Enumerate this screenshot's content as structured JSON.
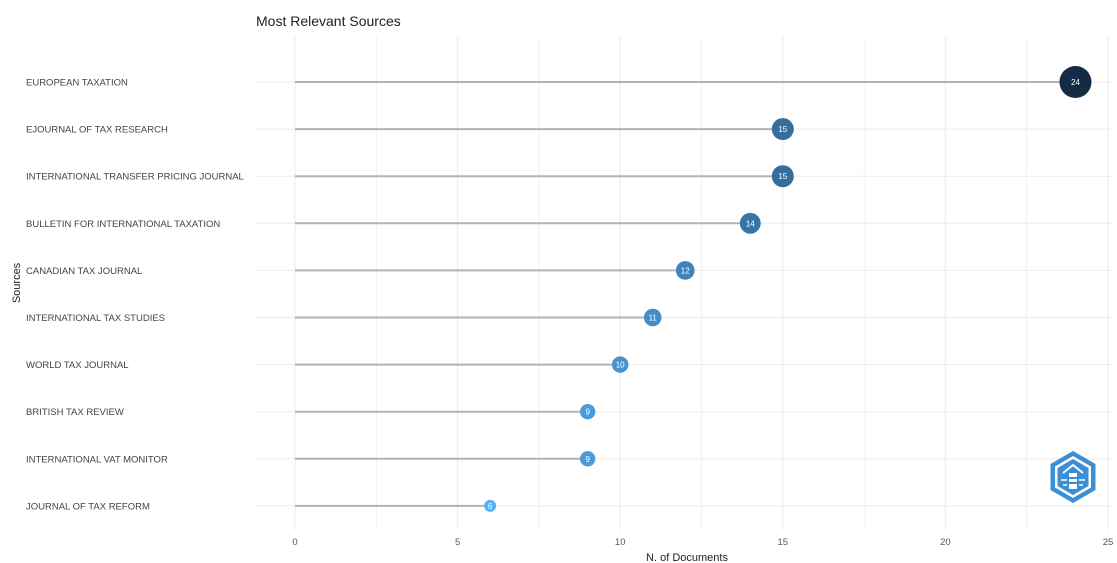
{
  "chart_data": {
    "type": "lollipop",
    "title": "Most Relevant Sources",
    "xlabel": "N. of Documents",
    "ylabel": "Sources",
    "xlim": [
      0,
      25
    ],
    "xticks": [
      0,
      5,
      10,
      15,
      20,
      25
    ],
    "grid": true,
    "categories": [
      "EUROPEAN TAXATION",
      "EJOURNAL OF TAX RESEARCH",
      "INTERNATIONAL TRANSFER PRICING JOURNAL",
      "BULLETIN FOR INTERNATIONAL TAXATION",
      "CANADIAN TAX JOURNAL",
      "INTERNATIONAL TAX STUDIES",
      "WORLD TAX JOURNAL",
      "BRITISH TAX REVIEW",
      "INTERNATIONAL VAT MONITOR",
      "JOURNAL OF TAX REFORM"
    ],
    "values": [
      24,
      15,
      15,
      14,
      12,
      11,
      10,
      9,
      9,
      6
    ],
    "colors": {
      "low": "#56b1f7",
      "high": "#132b43",
      "stem": "#b3b3b3",
      "grid": "#ebebeb"
    }
  },
  "watermark": {
    "icon": "lighthouse-logo-icon",
    "color": "#3a8fd6"
  }
}
